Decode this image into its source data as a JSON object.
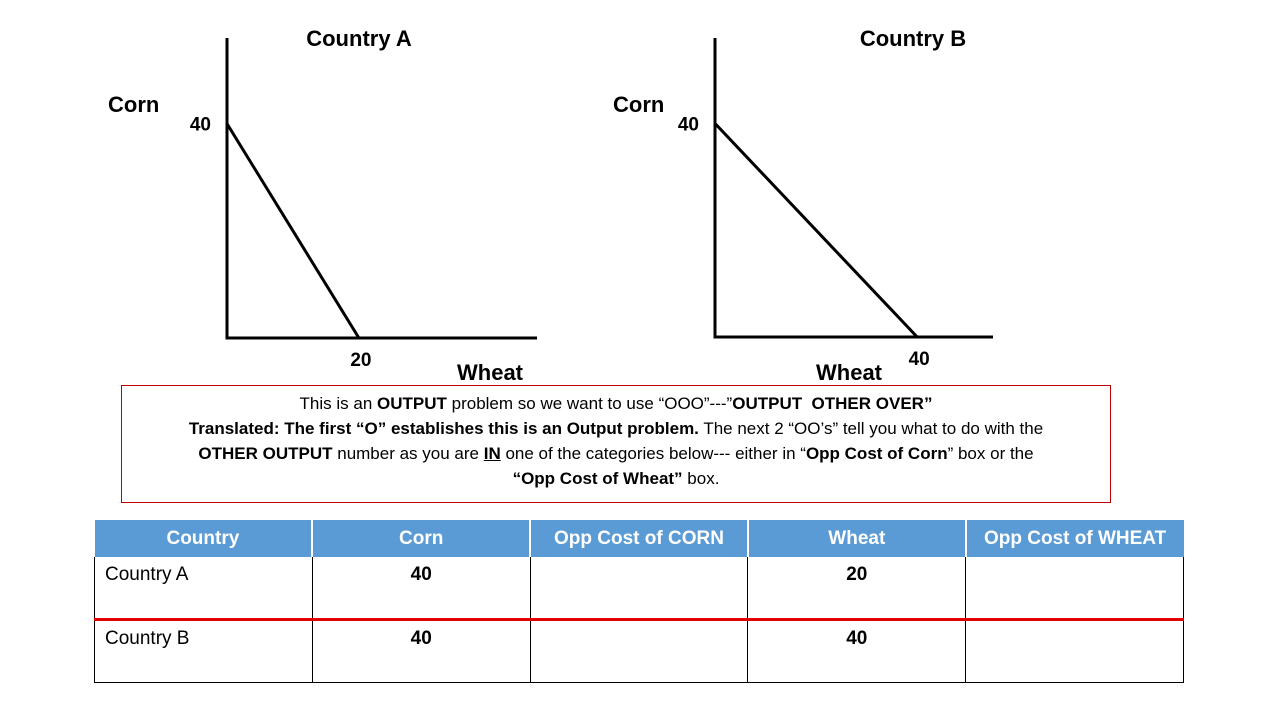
{
  "chart_data": [
    {
      "type": "line",
      "title": "Country A",
      "ylabel": "Corn",
      "xlabel": "Wheat",
      "x": [
        0,
        20
      ],
      "values": [
        40,
        0
      ],
      "color": "#000000",
      "xlim": [
        0,
        47
      ],
      "ylim": [
        0,
        56
      ],
      "xticks": [
        20
      ],
      "yticks": [
        40
      ]
    },
    {
      "type": "line",
      "title": "Country B",
      "ylabel": "Corn",
      "xlabel": "Wheat",
      "x": [
        0,
        40
      ],
      "values": [
        40,
        0
      ],
      "color": "#000000",
      "xlim": [
        0,
        55
      ],
      "ylim": [
        0,
        56
      ],
      "xticks": [
        40
      ],
      "yticks": [
        40
      ]
    }
  ],
  "note": {
    "runs": [
      "This is an ",
      "OUTPUT",
      " problem so we want to use “OOO”---”",
      "OUTPUT  OTHER OVER”",
      "Translated: The first “O” establishes this is an Output problem.",
      " The next 2 “OO’s” tell you what to do with the",
      "OTHER OUTPUT",
      " number as you are ",
      "IN",
      " one of the categories below--- either in “",
      "Opp Cost of Corn",
      "” box or the",
      "“Opp Cost of Wheat”",
      " box."
    ]
  },
  "table": {
    "columns": [
      "Country",
      "Corn",
      "Opp Cost of CORN",
      "Wheat",
      "Opp Cost of WHEAT"
    ],
    "rows": [
      [
        "Country A",
        40,
        null,
        20,
        null
      ],
      [
        "Country B",
        40,
        null,
        40,
        null
      ]
    ]
  }
}
